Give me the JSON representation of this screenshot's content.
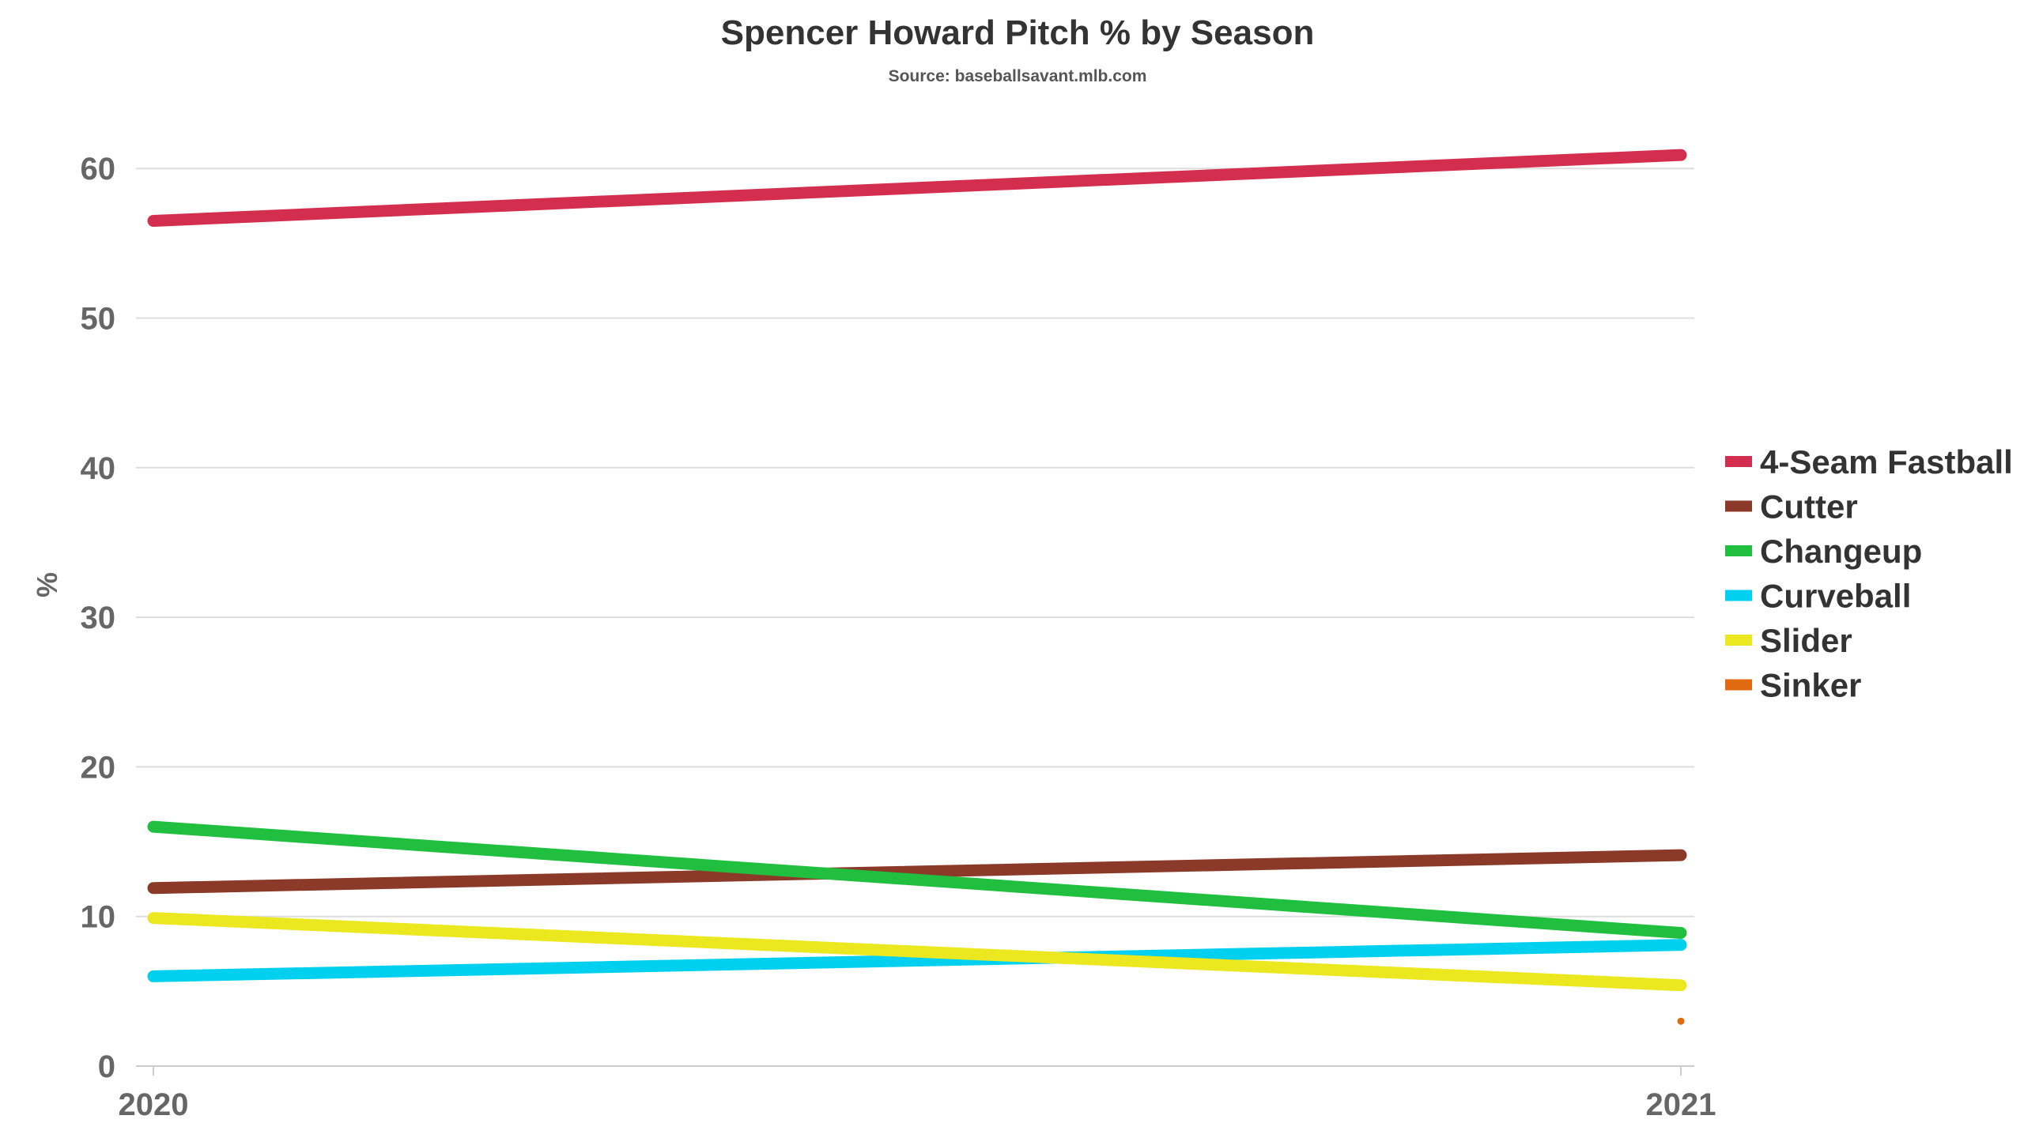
{
  "chart_data": {
    "type": "line",
    "title": "Spencer Howard Pitch % by Season",
    "subtitle": "Source: baseballsavant.mlb.com",
    "xlabel": "",
    "ylabel": "%",
    "x": [
      "2020",
      "2021"
    ],
    "ylim": [
      0,
      65
    ],
    "yticks": [
      0,
      10,
      20,
      30,
      40,
      50,
      60
    ],
    "grid": true,
    "legend_position": "right",
    "series": [
      {
        "name": "4-Seam Fastball",
        "color": "#d42e4e",
        "values": [
          56.5,
          60.9
        ]
      },
      {
        "name": "Cutter",
        "color": "#8b3a2a",
        "values": [
          11.9,
          14.1
        ]
      },
      {
        "name": "Changeup",
        "color": "#20bf3f",
        "values": [
          16.0,
          8.9
        ]
      },
      {
        "name": "Curveball",
        "color": "#00d0ef",
        "values": [
          6.0,
          8.1
        ]
      },
      {
        "name": "Slider",
        "color": "#ece820",
        "values": [
          9.9,
          5.4
        ]
      },
      {
        "name": "Sinker",
        "color": "#e06a10",
        "values": [
          null,
          3.0
        ]
      }
    ]
  }
}
